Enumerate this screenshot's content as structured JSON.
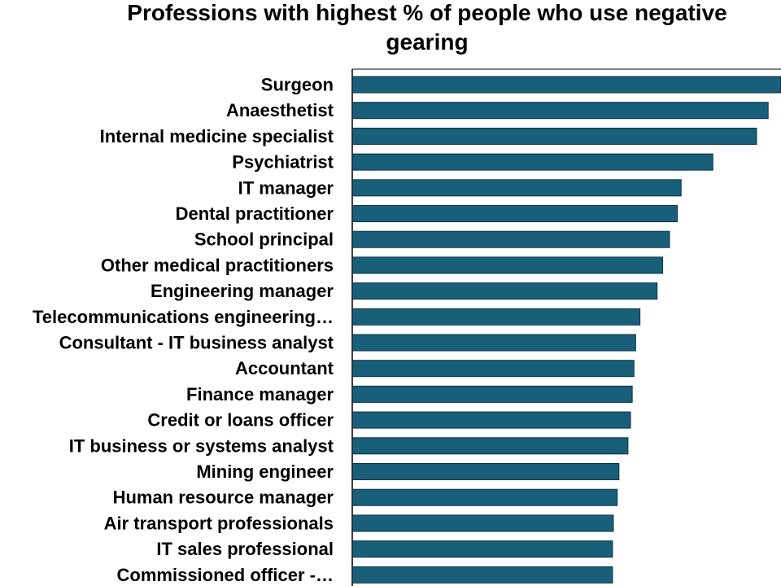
{
  "chart_data": {
    "type": "bar",
    "orientation": "horizontal",
    "title_lines": [
      "Professions with highest % of people who use negative",
      "gearing"
    ],
    "xlabel": "",
    "ylabel": "",
    "categories": [
      "Surgeon",
      "Anaesthetist",
      "Internal medicine specialist",
      "Psychiatrist",
      "IT manager",
      "Dental practitioner",
      "School principal",
      "Other medical practitioners",
      "Engineering manager",
      "Telecommunications engineering…",
      "Consultant - IT business analyst",
      "Accountant",
      "Finance manager",
      "Credit or loans officer",
      "IT business or systems analyst",
      "Mining engineer",
      "Human resource manager",
      "Air transport professionals",
      "IT sales professional",
      "Commissioned officer -…"
    ],
    "values": [
      100,
      97.1,
      94.4,
      84.2,
      76.8,
      75.9,
      74.1,
      72.5,
      71.2,
      67.2,
      66.2,
      65.8,
      65.4,
      65.0,
      64.4,
      62.3,
      61.9,
      61.0,
      60.8,
      60.8
    ],
    "xlim": [
      0,
      100
    ],
    "grid": false,
    "legend": "none",
    "bar_color": "#1a5f7a",
    "bar_edge_color": "#0c3344"
  }
}
